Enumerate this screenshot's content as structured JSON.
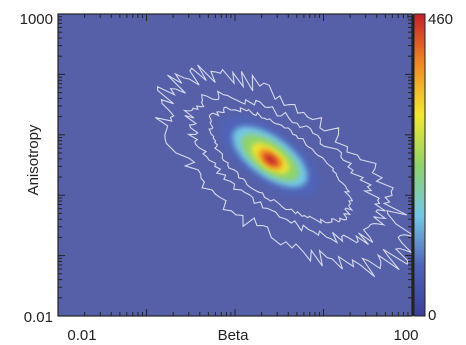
{
  "chart_data": {
    "type": "heatmap",
    "xlabel": "Beta",
    "ylabel": "Anisotropy",
    "x_scale": "log",
    "y_scale": "log",
    "xlim": [
      0.01,
      100
    ],
    "ylim": [
      0.01,
      1000
    ],
    "x_tick_labels": [
      "0.01",
      "100"
    ],
    "y_tick_labels": [
      "0.01",
      "1000"
    ],
    "colorbar": {
      "min": 0,
      "max": 460,
      "min_label": "0",
      "max_label": "460",
      "colors": [
        "#3a3f99",
        "#4f64b8",
        "#73c7e6",
        "#8fd36a",
        "#f3e830",
        "#f08a24",
        "#c4202a"
      ]
    },
    "background_color": "#5560a8",
    "density_peak": {
      "beta": 2.5,
      "anisotropy": 4.0,
      "count": 460
    },
    "contour_color": "#d6d9ee",
    "grid": false
  }
}
